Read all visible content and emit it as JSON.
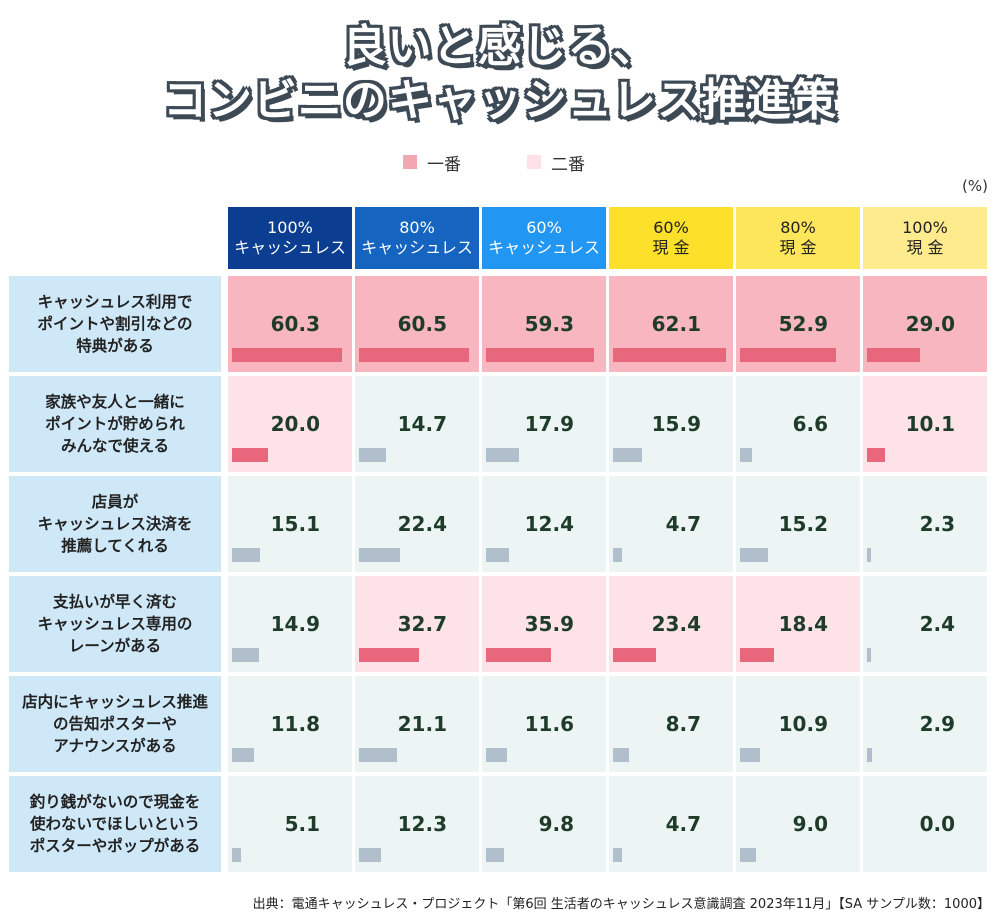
{
  "title": {
    "line1": "良いと感じる、",
    "line2": "コンビニのキャッシュレス推進策"
  },
  "legend": [
    {
      "label": "一番",
      "color": "#f3a7b1"
    },
    {
      "label": "二番",
      "color": "#fde1e6"
    }
  ],
  "unit": "(%)",
  "source": "出典：電通キャッシュレス・プロジェクト「第6回 生活者のキャッシュレス意識調査 2023年11月」【SA サンプル数：1000】",
  "colors": {
    "first_bg": "#f8b6c0",
    "first_bar": "#e8677d",
    "second_bg": "#fde3e8",
    "second_bar": "#e8677d",
    "other_bg": "#ecf4f4",
    "other_bar": "#b1bfcd",
    "rowhead_bg": "#cfe8f8"
  },
  "chart_data": {
    "type": "table",
    "title": "良いと感じる、コンビニのキャッシュレス推進策",
    "columns": [
      {
        "line1": "100%",
        "line2": "キャッシュレス",
        "bg": "#0b3d91",
        "fg": "#ffffff"
      },
      {
        "line1": "80%",
        "line2": "キャッシュレス",
        "bg": "#1565c0",
        "fg": "#ffffff"
      },
      {
        "line1": "60%",
        "line2": "キャッシュレス",
        "bg": "#2196f3",
        "fg": "#ffffff"
      },
      {
        "line1": "60%",
        "line2": "現 金",
        "bg": "#fde02a",
        "fg": "#222222"
      },
      {
        "line1": "80%",
        "line2": "現 金",
        "bg": "#fde65a",
        "fg": "#222222"
      },
      {
        "line1": "100%",
        "line2": "現 金",
        "bg": "#fdeb8e",
        "fg": "#222222"
      }
    ],
    "rows": [
      {
        "label": [
          "キャッシュレス利用で",
          "ポイントや割引などの",
          "特典がある"
        ],
        "values": [
          60.3,
          60.5,
          59.3,
          62.1,
          52.9,
          29.0
        ],
        "rank": [
          1,
          1,
          1,
          1,
          1,
          1
        ]
      },
      {
        "label": [
          "家族や友人と一緒に",
          "ポイントが貯められ",
          "みんなで使える"
        ],
        "values": [
          20.0,
          14.7,
          17.9,
          15.9,
          6.6,
          10.1
        ],
        "rank": [
          2,
          0,
          0,
          0,
          0,
          2
        ]
      },
      {
        "label": [
          "店員が",
          "キャッシュレス決済を",
          "推薦してくれる"
        ],
        "values": [
          15.1,
          22.4,
          12.4,
          4.7,
          15.2,
          2.3
        ],
        "rank": [
          0,
          0,
          0,
          0,
          0,
          0
        ]
      },
      {
        "label": [
          "支払いが早く済む",
          "キャッシュレス専用の",
          "レーンがある"
        ],
        "values": [
          14.9,
          32.7,
          35.9,
          23.4,
          18.4,
          2.4
        ],
        "rank": [
          0,
          2,
          2,
          2,
          2,
          0
        ]
      },
      {
        "label": [
          "店内にキャッシュレス推進",
          "の告知ポスターや",
          "アナウンスがある"
        ],
        "values": [
          11.8,
          21.1,
          11.6,
          8.7,
          10.9,
          2.9
        ],
        "rank": [
          0,
          0,
          0,
          0,
          0,
          0
        ]
      },
      {
        "label": [
          "釣り銭がないので現金を",
          "使わないでほしいという",
          "ポスターやポップがある"
        ],
        "values": [
          5.1,
          12.3,
          9.8,
          4.7,
          9.0,
          0.0
        ],
        "rank": [
          0,
          0,
          0,
          0,
          0,
          0
        ]
      }
    ],
    "bar_max": 100
  }
}
